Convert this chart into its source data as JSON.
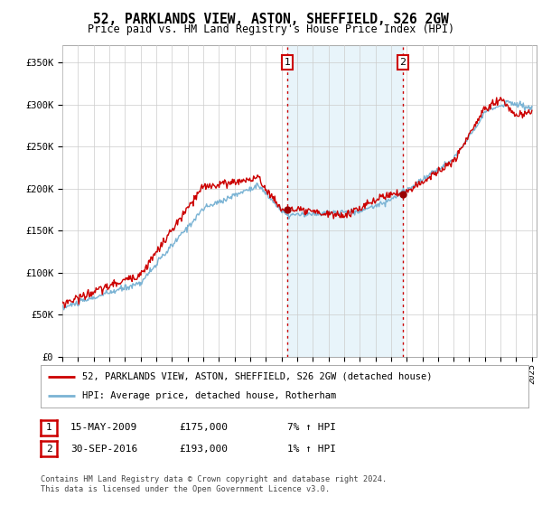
{
  "title": "52, PARKLANDS VIEW, ASTON, SHEFFIELD, S26 2GW",
  "subtitle": "Price paid vs. HM Land Registry's House Price Index (HPI)",
  "ylabel_ticks": [
    "£0",
    "£50K",
    "£100K",
    "£150K",
    "£200K",
    "£250K",
    "£300K",
    "£350K"
  ],
  "ylabel_values": [
    0,
    50000,
    100000,
    150000,
    200000,
    250000,
    300000,
    350000
  ],
  "ylim": [
    0,
    370000
  ],
  "x_start_year": 1995,
  "x_end_year": 2025,
  "sale1_date": 2009.37,
  "sale1_price": 175000,
  "sale1_label": "1",
  "sale2_date": 2016.75,
  "sale2_price": 193000,
  "sale2_label": "2",
  "hpi_color": "#7ab3d4",
  "price_color": "#cc0000",
  "vline_color": "#cc0000",
  "shaded_color": "#daeef8",
  "shaded_alpha": 0.6,
  "dot_color": "#990000",
  "legend_label1": "52, PARKLANDS VIEW, ASTON, SHEFFIELD, S26 2GW (detached house)",
  "legend_label2": "HPI: Average price, detached house, Rotherham",
  "table_row1": [
    "1",
    "15-MAY-2009",
    "£175,000",
    "7% ↑ HPI"
  ],
  "table_row2": [
    "2",
    "30-SEP-2016",
    "£193,000",
    "1% ↑ HPI"
  ],
  "footnote": "Contains HM Land Registry data © Crown copyright and database right 2024.\nThis data is licensed under the Open Government Licence v3.0.",
  "background_color": "#ffffff",
  "grid_color": "#cccccc"
}
